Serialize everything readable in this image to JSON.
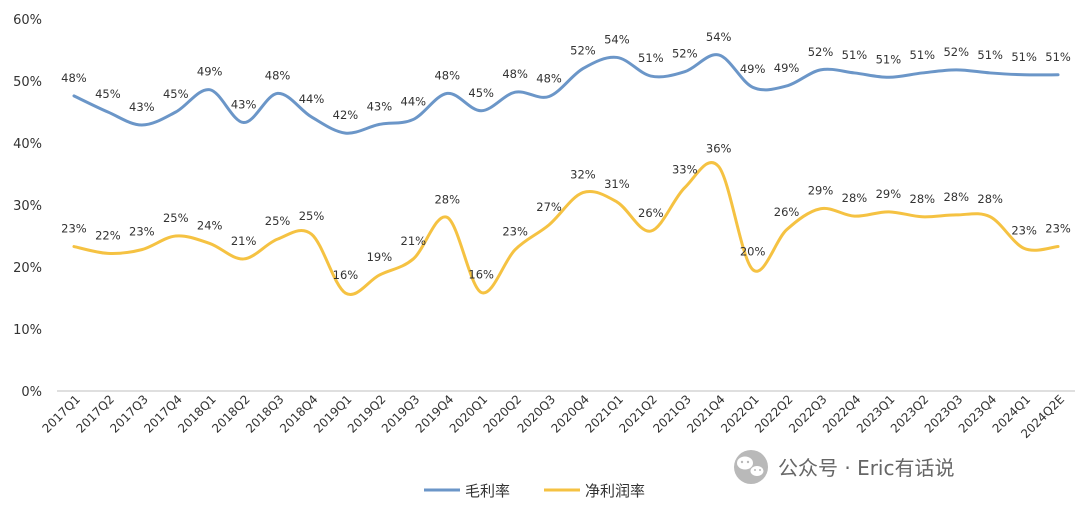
{
  "chart_data": {
    "type": "line",
    "title": "",
    "xlabel": "",
    "ylabel": "",
    "ylim": [
      0,
      60
    ],
    "yticks": [
      0,
      10,
      20,
      30,
      40,
      50,
      60
    ],
    "ytick_labels": [
      "0%",
      "10%",
      "20%",
      "30%",
      "40%",
      "50%",
      "60%"
    ],
    "grid": false,
    "legend_position": "bottom",
    "categories": [
      "2017Q1",
      "2017Q2",
      "2017Q3",
      "2017Q4",
      "2018Q1",
      "2018Q2",
      "2018Q3",
      "2018Q4",
      "2019Q1",
      "2019Q2",
      "2019Q3",
      "2019Q4",
      "2020Q1",
      "2020Q2",
      "2020Q3",
      "2020Q4",
      "2021Q1",
      "2021Q2",
      "2021Q3",
      "2021Q4",
      "2022Q1",
      "2022Q2",
      "2022Q3",
      "2022Q4",
      "2023Q1",
      "2023Q2",
      "2023Q3",
      "2023Q4",
      "2024Q1",
      "2024Q2E"
    ],
    "series": [
      {
        "name": "毛利率",
        "color": "#6b96c8",
        "values": [
          47.6,
          45.0,
          42.9,
          45.0,
          48.6,
          43.3,
          48.0,
          44.2,
          41.6,
          43.0,
          43.8,
          48.0,
          45.2,
          48.2,
          47.5,
          52.0,
          53.8,
          50.8,
          51.5,
          54.2,
          49.0,
          49.2,
          51.8,
          51.3,
          50.6,
          51.3,
          51.8,
          51.3,
          51.0,
          51.0
        ],
        "labels": [
          "48%",
          "45%",
          "43%",
          "45%",
          "49%",
          "43%",
          "48%",
          "44%",
          "42%",
          "43%",
          "44%",
          "48%",
          "45%",
          "48%",
          "48%",
          "52%",
          "54%",
          "51%",
          "52%",
          "54%",
          "49%",
          "49%",
          "52%",
          "51%",
          "51%",
          "51%",
          "52%",
          "51%",
          "51%",
          "51%"
        ]
      },
      {
        "name": "净利润率",
        "color": "#f5c242",
        "values": [
          23.3,
          22.2,
          22.8,
          25.0,
          23.8,
          21.3,
          24.5,
          25.3,
          15.8,
          18.7,
          21.3,
          28.0,
          15.9,
          22.8,
          26.8,
          32.0,
          30.5,
          25.8,
          32.8,
          36.2,
          19.6,
          26.0,
          29.4,
          28.2,
          28.9,
          28.1,
          28.4,
          28.1,
          23.0,
          23.3
        ],
        "labels": [
          "23%",
          "22%",
          "23%",
          "25%",
          "24%",
          "21%",
          "25%",
          "25%",
          "16%",
          "19%",
          "21%",
          "28%",
          "16%",
          "23%",
          "27%",
          "32%",
          "31%",
          "26%",
          "33%",
          "36%",
          "20%",
          "26%",
          "29%",
          "28%",
          "29%",
          "28%",
          "28%",
          "28%",
          "23%",
          "23%"
        ]
      }
    ]
  },
  "watermark": {
    "text": "公众号 · Eric有话说",
    "icon": "wechat-icon"
  }
}
